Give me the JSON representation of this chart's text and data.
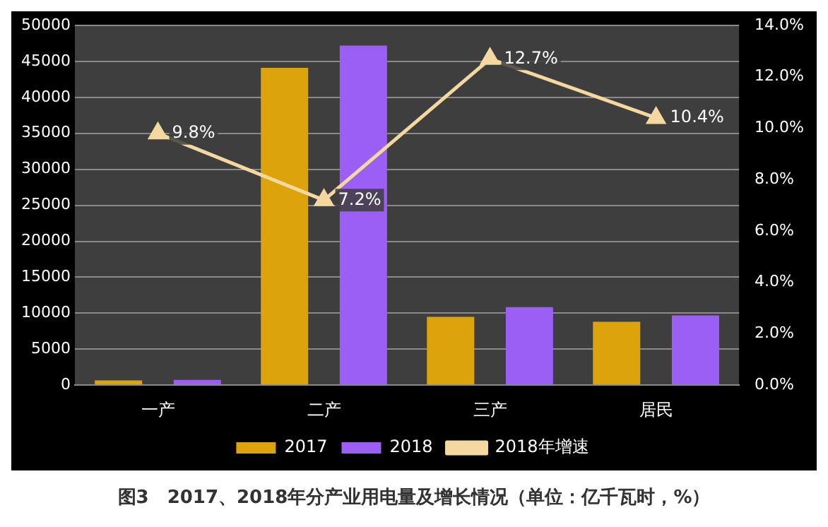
{
  "chart_data": {
    "type": "bar",
    "title": "图3　2017、2018年分产业用电量及增长情况（单位：亿千瓦时，%）",
    "categories": [
      "一产",
      "二产",
      "三产",
      "居民"
    ],
    "series": [
      {
        "name": "2017",
        "color": "#dda30a",
        "values": [
          650,
          44100,
          9500,
          8800
        ]
      },
      {
        "name": "2018",
        "color": "#9b5ff5",
        "values": [
          730,
          47200,
          10850,
          9700
        ]
      },
      {
        "name": "2018年增速",
        "type": "line",
        "axis": "y2",
        "color": "#f5d7a0",
        "marker": "triangle",
        "values": [
          9.8,
          7.2,
          12.7,
          10.4
        ],
        "value_labels": [
          "9.8%",
          "7.2%",
          "12.7%",
          "10.4%"
        ]
      }
    ],
    "ylim": [
      0,
      50000
    ],
    "yticks": [
      0,
      5000,
      10000,
      15000,
      20000,
      25000,
      30000,
      35000,
      40000,
      45000,
      50000
    ],
    "y2lim": [
      0,
      14
    ],
    "y2ticks": [
      {
        "value": 0,
        "label": "0.0%"
      },
      {
        "value": 2,
        "label": "2.0%"
      },
      {
        "value": 4,
        "label": "4.0%"
      },
      {
        "value": 6,
        "label": "6.0%"
      },
      {
        "value": 8,
        "label": "8.0%"
      },
      {
        "value": 10,
        "label": "10.0%"
      },
      {
        "value": 12,
        "label": "12.0%"
      },
      {
        "value": 14,
        "label": "14.0%"
      }
    ],
    "grid": "y",
    "legend": "bottom"
  }
}
